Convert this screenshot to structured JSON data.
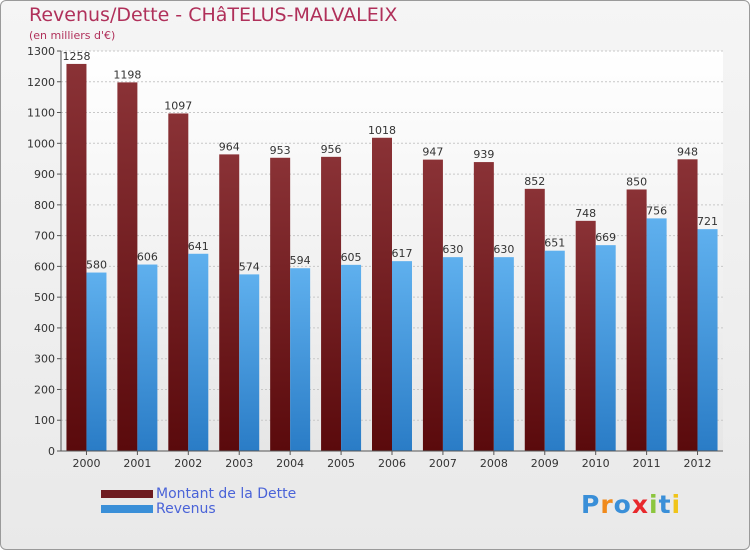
{
  "header": {
    "title": "Revenus/Dette - CHâTELUS-MALVALEIX",
    "subtitle": "(en milliers d'€)"
  },
  "legend": {
    "dette_label": "Montant de la Dette",
    "revenus_label": "Revenus"
  },
  "logo": {
    "text": "Proxiti"
  },
  "colors": {
    "dette": "#6e1b20",
    "revenus": "#3a8fd8",
    "title": "#b0305a",
    "legend_text": "#4a63d8"
  },
  "chart_data": {
    "type": "bar",
    "categories": [
      "2000",
      "2001",
      "2002",
      "2003",
      "2004",
      "2005",
      "2006",
      "2007",
      "2008",
      "2009",
      "2010",
      "2011",
      "2012"
    ],
    "series": [
      {
        "name": "Montant de la Dette",
        "values": [
          1258,
          1198,
          1097,
          964,
          953,
          956,
          1018,
          947,
          939,
          852,
          748,
          850,
          948
        ]
      },
      {
        "name": "Revenus",
        "values": [
          580,
          606,
          641,
          574,
          594,
          605,
          617,
          630,
          630,
          651,
          669,
          756,
          721
        ]
      }
    ],
    "title": "Revenus/Dette - CHâTELUS-MALVALEIX",
    "ylabel": "(en milliers d'€)",
    "ylim": [
      0,
      1300
    ],
    "yticks": [
      0,
      100,
      200,
      300,
      400,
      500,
      600,
      700,
      800,
      900,
      1000,
      1100,
      1200,
      1300
    ],
    "grid": true,
    "legend_position": "bottom-left"
  }
}
